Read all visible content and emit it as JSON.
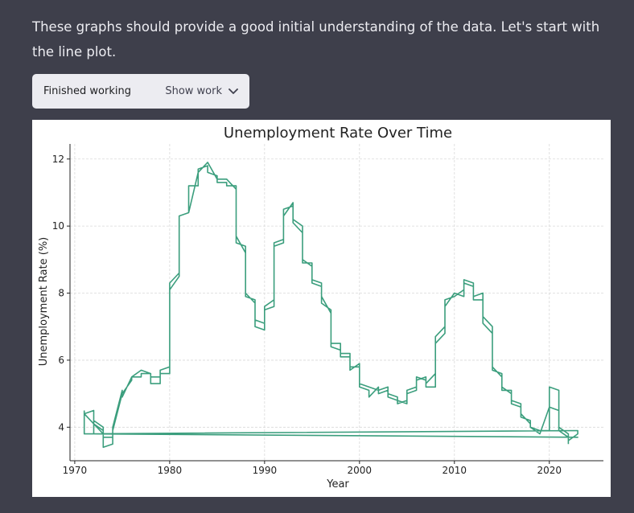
{
  "message": {
    "text": "These graphs should provide a good initial understanding of the data. Let's start with the line plot."
  },
  "tool_status": {
    "status_label": "Finished working",
    "toggle_label": "Show work",
    "toggle_icon": "chevron-down-icon"
  },
  "chart_data": {
    "type": "line",
    "title": "Unemployment Rate Over Time",
    "xlabel": "Year",
    "ylabel": "Unemployment Rate (%)",
    "xlim": [
      1969.5,
      2025.7
    ],
    "ylim": [
      3.0,
      12.45
    ],
    "xticks": [
      1970,
      1980,
      1990,
      2000,
      2010,
      2020
    ],
    "yticks": [
      4,
      6,
      8,
      10,
      12
    ],
    "grid": true,
    "line_color": "#3b9e7d",
    "series": [
      {
        "values": [
          [
            1971,
            4.5
          ],
          [
            1971,
            3.8
          ],
          [
            1972,
            3.8
          ],
          [
            1972,
            4.2
          ],
          [
            1973,
            4.0
          ],
          [
            1973,
            3.7
          ],
          [
            1974,
            3.7
          ],
          [
            1974,
            4.0
          ],
          [
            1975,
            5.1
          ],
          [
            1975,
            5.0
          ],
          [
            1976,
            5.4
          ],
          [
            1976,
            5.5
          ],
          [
            1977,
            5.5
          ],
          [
            1977,
            5.6
          ],
          [
            1978,
            5.6
          ],
          [
            1978,
            5.5
          ],
          [
            1979,
            5.5
          ],
          [
            1979,
            5.7
          ],
          [
            1980,
            5.8
          ],
          [
            1980,
            8.3
          ],
          [
            1981,
            8.6
          ],
          [
            1981,
            10.3
          ],
          [
            1982,
            10.4
          ],
          [
            1982,
            11.2
          ],
          [
            1983,
            11.2
          ],
          [
            1983,
            11.7
          ],
          [
            1984,
            11.8
          ],
          [
            1984,
            11.6
          ],
          [
            1985,
            11.5
          ],
          [
            1985,
            11.3
          ],
          [
            1986,
            11.3
          ],
          [
            1986,
            11.2
          ],
          [
            1987,
            11.2
          ],
          [
            1987,
            9.5
          ],
          [
            1988,
            9.4
          ],
          [
            1988,
            7.9
          ],
          [
            1989,
            7.8
          ],
          [
            1989,
            7.2
          ],
          [
            1990,
            7.1
          ],
          [
            1990,
            7.6
          ],
          [
            1991,
            7.8
          ],
          [
            1991,
            9.5
          ],
          [
            1992,
            9.6
          ],
          [
            1992,
            10.5
          ],
          [
            1993,
            10.6
          ],
          [
            1993,
            10.2
          ],
          [
            1994,
            10.0
          ],
          [
            1994,
            8.9
          ],
          [
            1995,
            8.9
          ],
          [
            1995,
            8.4
          ],
          [
            1996,
            8.3
          ],
          [
            1996,
            7.7
          ],
          [
            1997,
            7.5
          ],
          [
            1997,
            6.5
          ],
          [
            1998,
            6.5
          ],
          [
            1998,
            6.2
          ],
          [
            1999,
            6.2
          ],
          [
            1999,
            5.8
          ],
          [
            2000,
            5.8
          ],
          [
            2000,
            5.3
          ],
          [
            2001,
            5.2
          ],
          [
            2001,
            5.2
          ],
          [
            2002,
            5.1
          ],
          [
            2002,
            5.0
          ],
          [
            2003,
            5.1
          ],
          [
            2003,
            4.9
          ],
          [
            2004,
            4.8
          ],
          [
            2004,
            4.8
          ],
          [
            2005,
            4.7
          ],
          [
            2005,
            5.0
          ],
          [
            2006,
            5.1
          ],
          [
            2006,
            5.4
          ],
          [
            2007,
            5.5
          ],
          [
            2007,
            5.2
          ],
          [
            2008,
            5.2
          ],
          [
            2008,
            6.5
          ],
          [
            2009,
            6.8
          ],
          [
            2009,
            7.8
          ],
          [
            2010,
            7.9
          ],
          [
            2010,
            7.9
          ],
          [
            2011,
            8.1
          ],
          [
            2011,
            8.4
          ],
          [
            2012,
            8.3
          ],
          [
            2012,
            7.8
          ],
          [
            2013,
            7.8
          ],
          [
            2013,
            7.3
          ],
          [
            2014,
            7.0
          ],
          [
            2014,
            5.7
          ],
          [
            2015,
            5.6
          ],
          [
            2015,
            5.2
          ],
          [
            2016,
            5.0
          ],
          [
            2016,
            4.8
          ],
          [
            2017,
            4.7
          ],
          [
            2017,
            4.3
          ],
          [
            2018,
            4.2
          ],
          [
            2018,
            4.0
          ],
          [
            2019,
            3.9
          ],
          [
            2019,
            3.9
          ],
          [
            2020,
            3.9
          ],
          [
            2020,
            5.2
          ],
          [
            2021,
            5.1
          ],
          [
            2021,
            4.0
          ],
          [
            2022,
            3.8
          ],
          [
            2022,
            3.6
          ],
          [
            2023,
            3.8
          ],
          [
            2023,
            3.9
          ],
          [
            1971,
            3.8
          ],
          [
            1972,
            3.8
          ],
          [
            2023,
            3.7
          ],
          [
            1973,
            3.8
          ],
          [
            1971,
            4.4
          ],
          [
            1972,
            4.5
          ],
          [
            1972,
            4.1
          ],
          [
            1973,
            3.9
          ],
          [
            1973,
            3.4
          ],
          [
            1974,
            3.5
          ],
          [
            1974,
            3.9
          ],
          [
            1975,
            5.0
          ],
          [
            1975,
            4.9
          ],
          [
            1976,
            5.5
          ],
          [
            1977,
            5.7
          ],
          [
            1978,
            5.6
          ],
          [
            1978,
            5.3
          ],
          [
            1979,
            5.3
          ],
          [
            1979,
            5.6
          ],
          [
            1980,
            5.6
          ],
          [
            1980,
            8.1
          ],
          [
            1981,
            8.5
          ],
          [
            1981,
            10.3
          ],
          [
            1982,
            10.4
          ],
          [
            1983,
            11.6
          ],
          [
            1984,
            11.9
          ],
          [
            1985,
            11.4
          ],
          [
            1986,
            11.4
          ],
          [
            1987,
            11.1
          ],
          [
            1987,
            9.7
          ],
          [
            1988,
            9.2
          ],
          [
            1988,
            8.0
          ],
          [
            1989,
            7.7
          ],
          [
            1989,
            7.0
          ],
          [
            1990,
            6.9
          ],
          [
            1990,
            7.5
          ],
          [
            1991,
            7.6
          ],
          [
            1991,
            9.4
          ],
          [
            1992,
            9.5
          ],
          [
            1992,
            10.3
          ],
          [
            1993,
            10.7
          ],
          [
            1993,
            10.1
          ],
          [
            1994,
            9.8
          ],
          [
            1994,
            9.0
          ],
          [
            1995,
            8.8
          ],
          [
            1995,
            8.3
          ],
          [
            1996,
            8.2
          ],
          [
            1996,
            7.9
          ],
          [
            1997,
            7.4
          ],
          [
            1997,
            6.4
          ],
          [
            1998,
            6.3
          ],
          [
            1998,
            6.1
          ],
          [
            1999,
            6.1
          ],
          [
            1999,
            5.7
          ],
          [
            2000,
            5.9
          ],
          [
            2000,
            5.2
          ],
          [
            2001,
            5.1
          ],
          [
            2001,
            4.9
          ],
          [
            2002,
            5.2
          ],
          [
            2002,
            5.1
          ],
          [
            2003,
            5.2
          ],
          [
            2003,
            5.0
          ],
          [
            2004,
            4.9
          ],
          [
            2004,
            4.7
          ],
          [
            2005,
            4.8
          ],
          [
            2005,
            5.1
          ],
          [
            2006,
            5.2
          ],
          [
            2006,
            5.5
          ],
          [
            2007,
            5.4
          ],
          [
            2007,
            5.3
          ],
          [
            2008,
            5.6
          ],
          [
            2008,
            6.7
          ],
          [
            2009,
            7.0
          ],
          [
            2009,
            7.6
          ],
          [
            2010,
            8.0
          ],
          [
            2011,
            7.9
          ],
          [
            2011,
            8.3
          ],
          [
            2012,
            8.2
          ],
          [
            2012,
            7.9
          ],
          [
            2013,
            8.0
          ],
          [
            2013,
            7.1
          ],
          [
            2014,
            6.8
          ],
          [
            2014,
            5.8
          ],
          [
            2015,
            5.5
          ],
          [
            2015,
            5.1
          ],
          [
            2016,
            5.1
          ],
          [
            2016,
            4.7
          ],
          [
            2017,
            4.6
          ],
          [
            2017,
            4.4
          ],
          [
            2018,
            4.1
          ],
          [
            2018,
            4.0
          ],
          [
            2019,
            3.8
          ],
          [
            2020,
            4.6
          ],
          [
            2021,
            4.5
          ],
          [
            2021,
            3.9
          ],
          [
            2022,
            3.7
          ],
          [
            2022,
            3.5
          ]
        ]
      }
    ]
  }
}
